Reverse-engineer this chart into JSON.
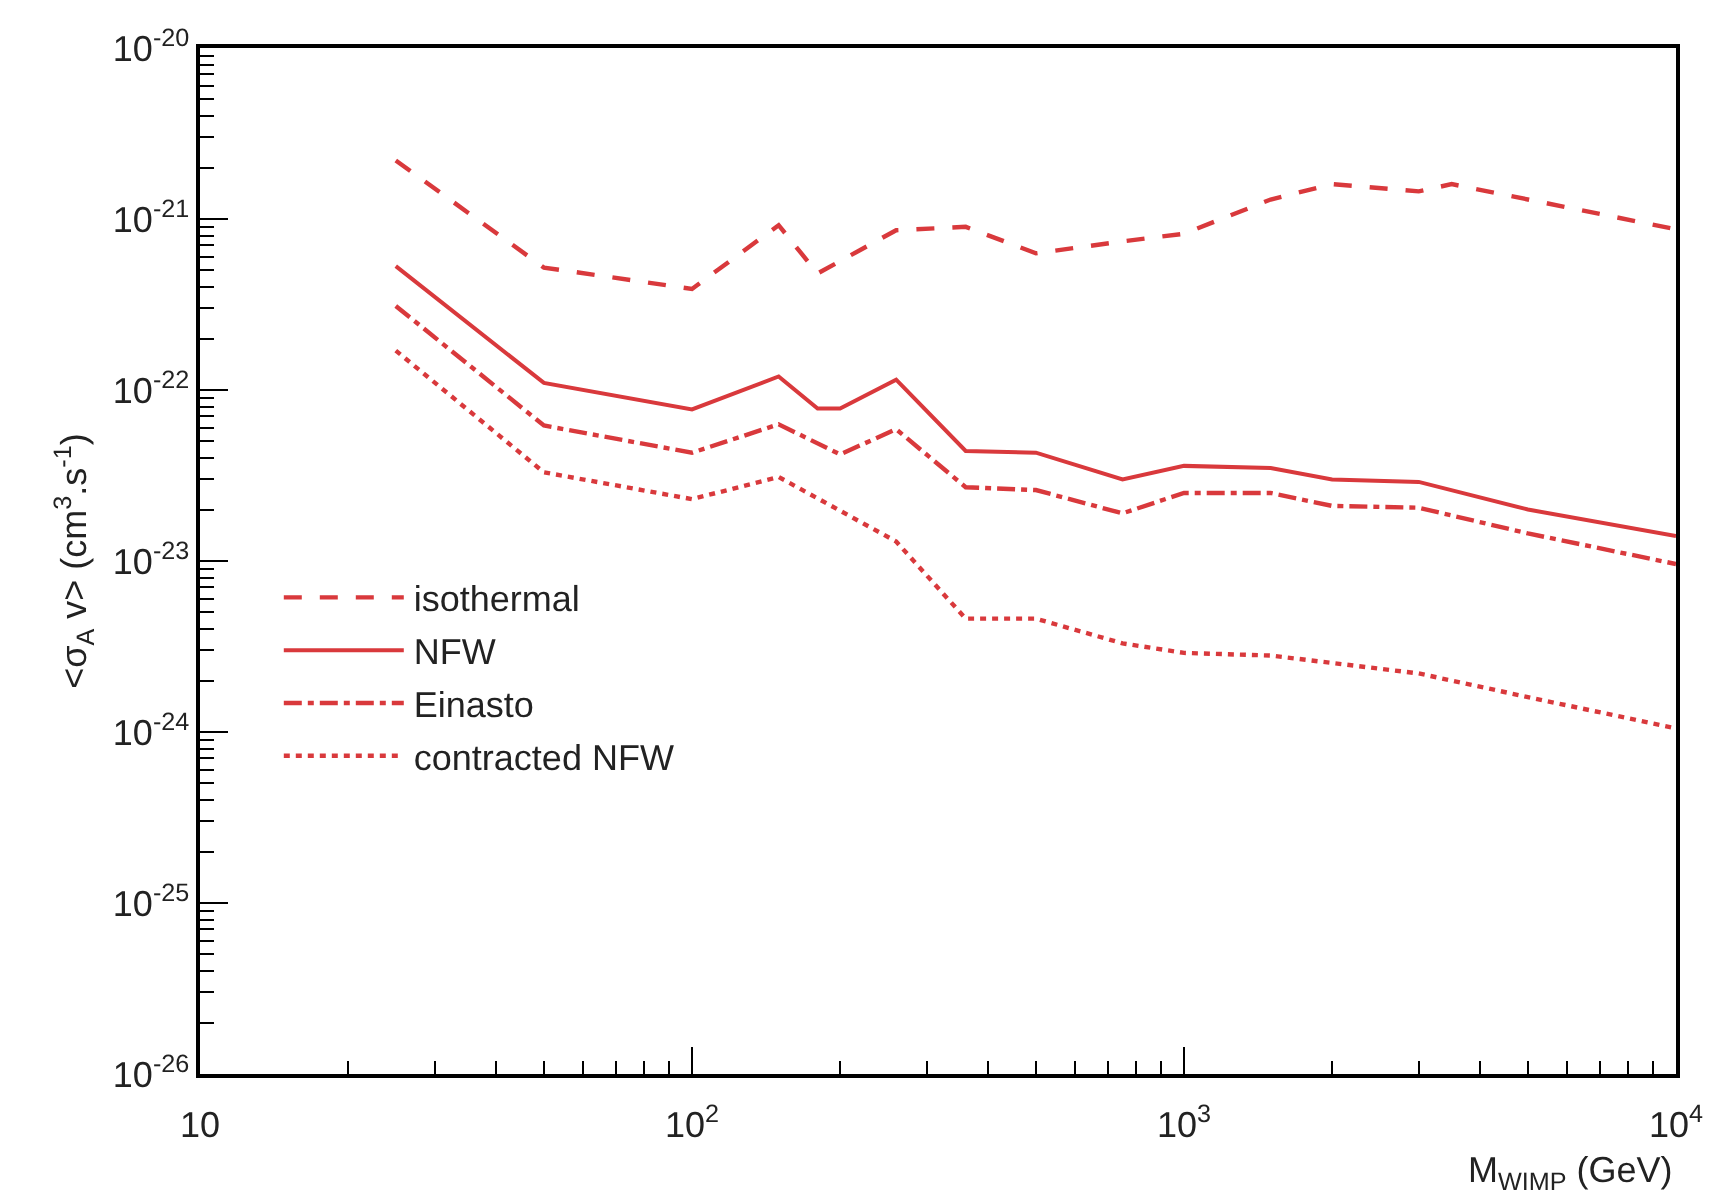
{
  "chart_data": {
    "type": "line",
    "xlabel": "M$_{WIMP}$ (GeV)",
    "ylabel": "<σ$_{A}$ v> (cm$^{3}$.s$^{-1}$)",
    "log": "xy",
    "xlim": [
      10,
      10000
    ],
    "ylim": [
      1e-26,
      1e-20
    ],
    "xticks": [
      {
        "value": 10,
        "label": "10"
      },
      {
        "value": 100,
        "label": "10$^{2}$"
      },
      {
        "value": 1000,
        "label": "10$^{3}$"
      },
      {
        "value": 10000,
        "label": "10$^{4}$"
      }
    ],
    "yticks": [
      {
        "value": 1e-26,
        "label": "10$^{-26}$"
      },
      {
        "value": 1e-25,
        "label": "10$^{-25}$"
      },
      {
        "value": 1e-24,
        "label": "10$^{-24}$"
      },
      {
        "value": 1e-23,
        "label": "10$^{-23}$"
      },
      {
        "value": 1e-22,
        "label": "10$^{-22}$"
      },
      {
        "value": 1e-21,
        "label": "10$^{-21}$"
      },
      {
        "value": 1e-20,
        "label": "10$^{-20}$"
      }
    ],
    "legend": "left",
    "marker": "none",
    "series": [
      {
        "name": "isothermal",
        "color": "#d9393c",
        "line_style": "dashed",
        "x": [
          25,
          50,
          100,
          150,
          180,
          260,
          360,
          500,
          750,
          1000,
          1500,
          2000,
          3000,
          3500,
          10000
        ],
        "values": [
          2.2e-21,
          5.2e-22,
          3.9e-22,
          9.2e-22,
          4.8e-22,
          8.6e-22,
          9e-22,
          6.3e-22,
          7.4e-22,
          8.2e-22,
          1.3e-21,
          1.6e-21,
          1.45e-21,
          1.6e-21,
          8.7e-22
        ]
      },
      {
        "name": "NFW",
        "color": "#d9393c",
        "line_style": "solid",
        "x": [
          25,
          50,
          100,
          150,
          180,
          200,
          260,
          360,
          500,
          750,
          1000,
          1500,
          2000,
          3000,
          5000,
          10000
        ],
        "values": [
          5.3e-22,
          1.1e-22,
          7.7e-23,
          1.2e-22,
          7.8e-23,
          7.8e-23,
          1.15e-22,
          4.4e-23,
          4.3e-23,
          3e-23,
          3.6e-23,
          3.5e-23,
          3e-23,
          2.9e-23,
          2e-23,
          1.4e-23
        ]
      },
      {
        "name": "Einasto",
        "color": "#d9393c",
        "line_style": "dashdot",
        "x": [
          25,
          50,
          100,
          150,
          200,
          260,
          360,
          500,
          750,
          1000,
          1500,
          2000,
          3000,
          5000,
          10000
        ],
        "values": [
          3.1e-22,
          6.2e-23,
          4.3e-23,
          6.3e-23,
          4.2e-23,
          5.9e-23,
          2.7e-23,
          2.6e-23,
          1.9e-23,
          2.5e-23,
          2.5e-23,
          2.1e-23,
          2.05e-23,
          1.45e-23,
          9.6e-24
        ]
      },
      {
        "name": "contracted NFW",
        "color": "#d9393c",
        "line_style": "dotted",
        "x": [
          25,
          50,
          100,
          150,
          260,
          360,
          500,
          750,
          1000,
          1500,
          3000,
          5000,
          10000
        ],
        "values": [
          1.7e-22,
          3.3e-23,
          2.3e-23,
          3.1e-23,
          1.3e-23,
          4.6e-24,
          4.6e-24,
          3.3e-24,
          2.9e-24,
          2.8e-24,
          2.2e-24,
          1.6e-24,
          1.05e-24
        ]
      }
    ]
  }
}
